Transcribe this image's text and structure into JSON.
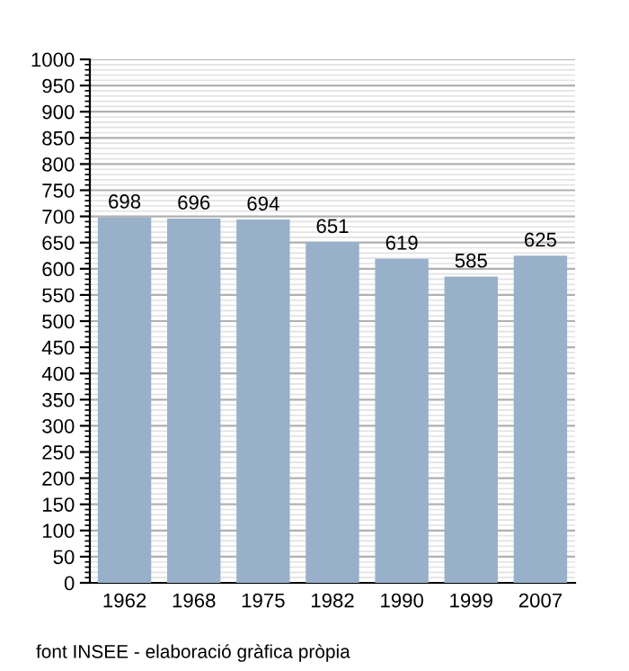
{
  "chart_data": {
    "type": "bar",
    "categories": [
      "1962",
      "1968",
      "1975",
      "1982",
      "1990",
      "1999",
      "2007"
    ],
    "values": [
      698,
      696,
      694,
      651,
      619,
      585,
      625
    ],
    "color": "#98b0c9",
    "data_labels": true,
    "ylim": [
      0,
      1000
    ],
    "yticks": [
      0,
      {
        "value": 10,
        "label": null
      },
      {
        "value": 20,
        "label": null
      },
      {
        "value": 30,
        "label": null
      },
      {
        "value": 40,
        "label": null
      },
      50,
      {
        "value": 60,
        "label": null
      },
      {
        "value": 70,
        "label": null
      },
      {
        "value": 80,
        "label": null
      },
      {
        "value": 90,
        "label": null
      },
      100,
      {
        "value": 110,
        "label": null
      },
      {
        "value": 120,
        "label": null
      },
      {
        "value": 130,
        "label": null
      },
      {
        "value": 140,
        "label": null
      },
      150,
      {
        "value": 160,
        "label": null
      },
      {
        "value": 170,
        "label": null
      },
      {
        "value": 180,
        "label": null
      },
      {
        "value": 190,
        "label": null
      },
      200,
      {
        "value": 210,
        "label": null
      },
      {
        "value": 220,
        "label": null
      },
      {
        "value": 230,
        "label": null
      },
      {
        "value": 240,
        "label": null
      },
      250,
      {
        "value": 260,
        "label": null
      },
      {
        "value": 270,
        "label": null
      },
      {
        "value": 280,
        "label": null
      },
      {
        "value": 290,
        "label": null
      },
      300,
      {
        "value": 310,
        "label": null
      },
      {
        "value": 320,
        "label": null
      },
      {
        "value": 330,
        "label": null
      },
      {
        "value": 340,
        "label": null
      },
      350,
      {
        "value": 360,
        "label": null
      },
      {
        "value": 370,
        "label": null
      },
      {
        "value": 380,
        "label": null
      },
      {
        "value": 390,
        "label": null
      },
      400,
      {
        "value": 410,
        "label": null
      },
      {
        "value": 420,
        "label": null
      },
      {
        "value": 430,
        "label": null
      },
      {
        "value": 440,
        "label": null
      },
      450,
      {
        "value": 460,
        "label": null
      },
      {
        "value": 470,
        "label": null
      },
      {
        "value": 480,
        "label": null
      },
      {
        "value": 490,
        "label": null
      },
      500,
      {
        "value": 510,
        "label": null
      },
      {
        "value": 520,
        "label": null
      },
      {
        "value": 530,
        "label": null
      },
      {
        "value": 540,
        "label": null
      },
      550,
      {
        "value": 560,
        "label": null
      },
      {
        "value": 570,
        "label": null
      },
      {
        "value": 580,
        "label": null
      },
      {
        "value": 590,
        "label": null
      },
      600,
      {
        "value": 610,
        "label": null
      },
      {
        "value": 620,
        "label": null
      },
      {
        "value": 630,
        "label": null
      },
      {
        "value": 640,
        "label": null
      },
      650,
      {
        "value": 660,
        "label": null
      },
      {
        "value": 670,
        "label": null
      },
      {
        "value": 680,
        "label": null
      },
      {
        "value": 690,
        "label": null
      },
      700,
      {
        "value": 710,
        "label": null
      },
      {
        "value": 720,
        "label": null
      },
      {
        "value": 730,
        "label": null
      },
      {
        "value": 740,
        "label": null
      },
      750,
      {
        "value": 760,
        "label": null
      },
      {
        "value": 770,
        "label": null
      },
      {
        "value": 780,
        "label": null
      },
      {
        "value": 790,
        "label": null
      },
      800,
      {
        "value": 810,
        "label": null
      },
      {
        "value": 820,
        "label": null
      },
      {
        "value": 830,
        "label": null
      },
      {
        "value": 840,
        "label": null
      },
      850,
      {
        "value": 860,
        "label": null
      },
      {
        "value": 870,
        "label": null
      },
      {
        "value": 880,
        "label": null
      },
      {
        "value": 890,
        "label": null
      },
      900,
      {
        "value": 910,
        "label": null
      },
      {
        "value": 920,
        "label": null
      },
      {
        "value": 930,
        "label": null
      },
      {
        "value": 940,
        "label": null
      },
      950,
      {
        "value": 960,
        "label": null
      },
      {
        "value": 970,
        "label": null
      },
      {
        "value": 980,
        "label": null
      },
      {
        "value": 990,
        "label": null
      },
      1000
    ],
    "grid": "y",
    "annotations": [
      "font INSEE - elaboració gràfica pròpia"
    ]
  }
}
